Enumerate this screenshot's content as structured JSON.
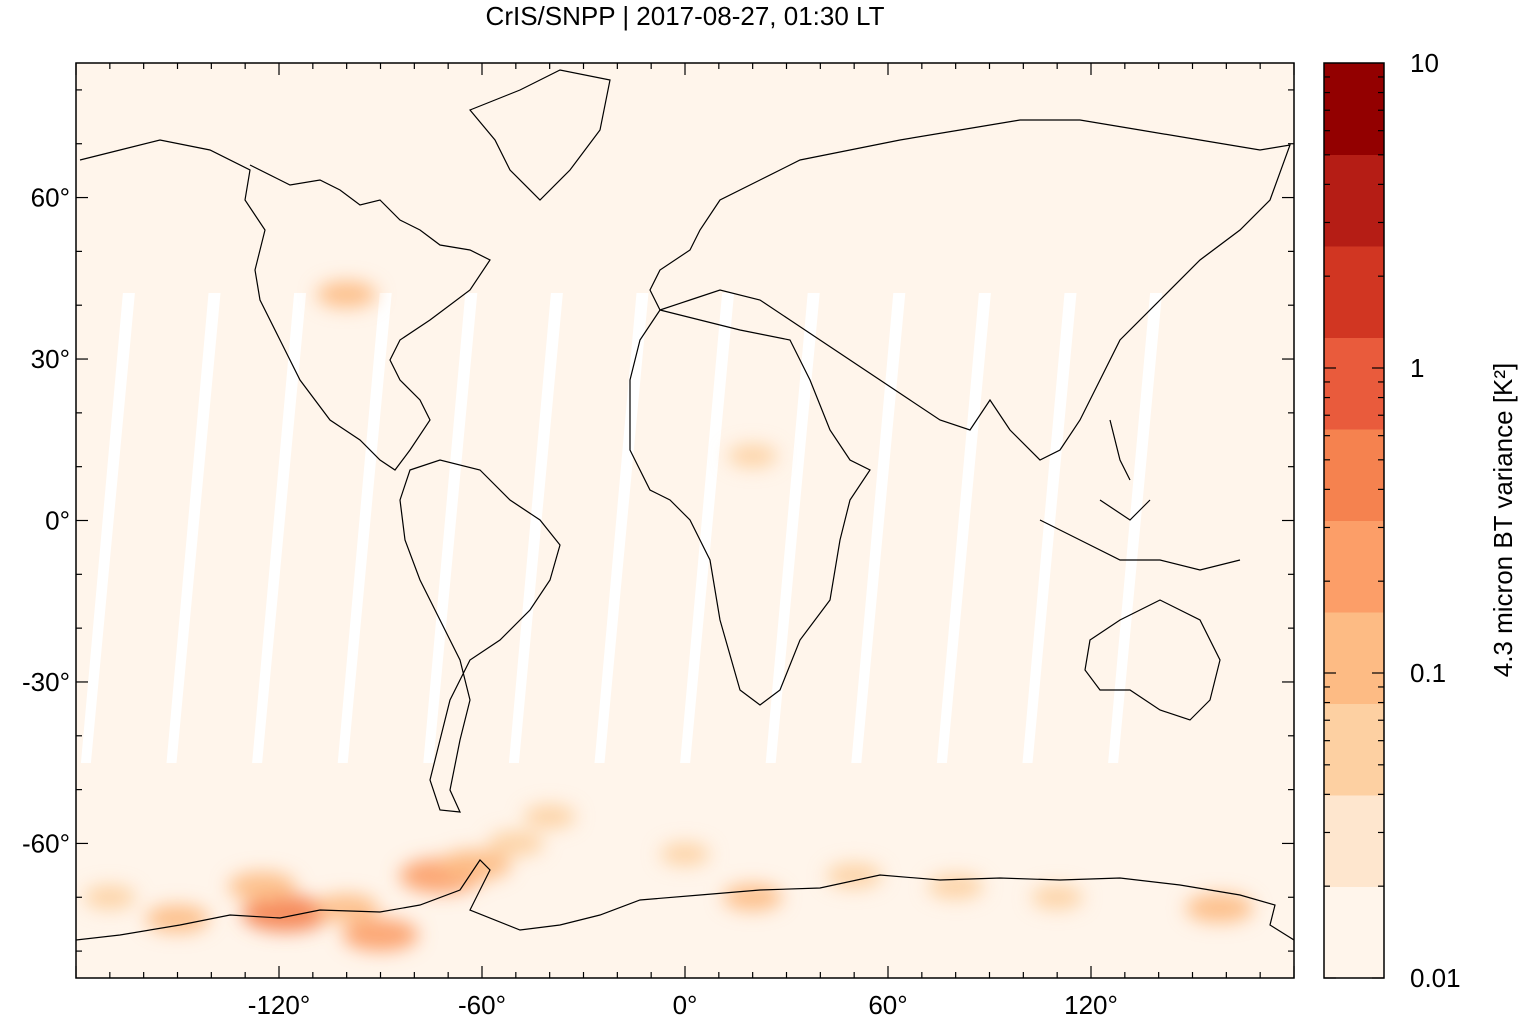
{
  "title": "CrIS/SNPP | 2017-08-27, 01:30 LT",
  "map": {
    "projection": "equirectangular",
    "lon_range": [
      -180,
      180
    ],
    "lat_range": [
      -85,
      85
    ],
    "background_color": "#fff5eb",
    "swath_gap_color": "#ffffff",
    "x_ticks": [
      {
        "value": -120,
        "label": "-120°"
      },
      {
        "value": -60,
        "label": "-60°"
      },
      {
        "value": 0,
        "label": "0°"
      },
      {
        "value": 60,
        "label": "60°"
      },
      {
        "value": 120,
        "label": "120°"
      }
    ],
    "y_ticks": [
      {
        "value": 60,
        "label": "60°"
      },
      {
        "value": 30,
        "label": "30°"
      },
      {
        "value": 0,
        "label": "0°"
      },
      {
        "value": -30,
        "label": "-30°"
      },
      {
        "value": -60,
        "label": "-60°"
      }
    ],
    "hotspots": [
      {
        "lon": -118,
        "lat": -73,
        "level": 0.6
      },
      {
        "lon": -125,
        "lat": -68,
        "level": 0.35
      },
      {
        "lon": -100,
        "lat": -72,
        "level": 0.3
      },
      {
        "lon": -90,
        "lat": -77,
        "level": 0.45
      },
      {
        "lon": -72,
        "lat": -66,
        "level": 0.55
      },
      {
        "lon": -62,
        "lat": -64,
        "level": 0.4
      },
      {
        "lon": -50,
        "lat": -60,
        "level": 0.2
      },
      {
        "lon": -40,
        "lat": -55,
        "level": 0.15
      },
      {
        "lon": -150,
        "lat": -74,
        "level": 0.3
      },
      {
        "lon": -170,
        "lat": -70,
        "level": 0.15
      },
      {
        "lon": 20,
        "lat": -70,
        "level": 0.25
      },
      {
        "lon": 50,
        "lat": -66,
        "level": 0.2
      },
      {
        "lon": 80,
        "lat": -68,
        "level": 0.2
      },
      {
        "lon": 110,
        "lat": -70,
        "level": 0.15
      },
      {
        "lon": 158,
        "lat": -72,
        "level": 0.35
      },
      {
        "lon": 0,
        "lat": -62,
        "level": 0.12
      },
      {
        "lon": -100,
        "lat": 42,
        "level": 0.25
      },
      {
        "lon": 20,
        "lat": 12,
        "level": 0.12
      }
    ]
  },
  "colorbar": {
    "label": "4.3 micron BT variance [K²]",
    "scale": "log",
    "range": [
      0.01,
      10
    ],
    "tick_labels": [
      {
        "value": 10,
        "label": "10"
      },
      {
        "value": 1,
        "label": "1"
      },
      {
        "value": 0.1,
        "label": "0.1"
      },
      {
        "value": 0.01,
        "label": "0.01"
      }
    ],
    "colors": [
      "#fff5eb",
      "#fee6ce",
      "#fdd0a2",
      "#fdbb84",
      "#fc9e68",
      "#f5824f",
      "#e95b3c",
      "#d13622",
      "#b51d15",
      "#930000"
    ]
  }
}
